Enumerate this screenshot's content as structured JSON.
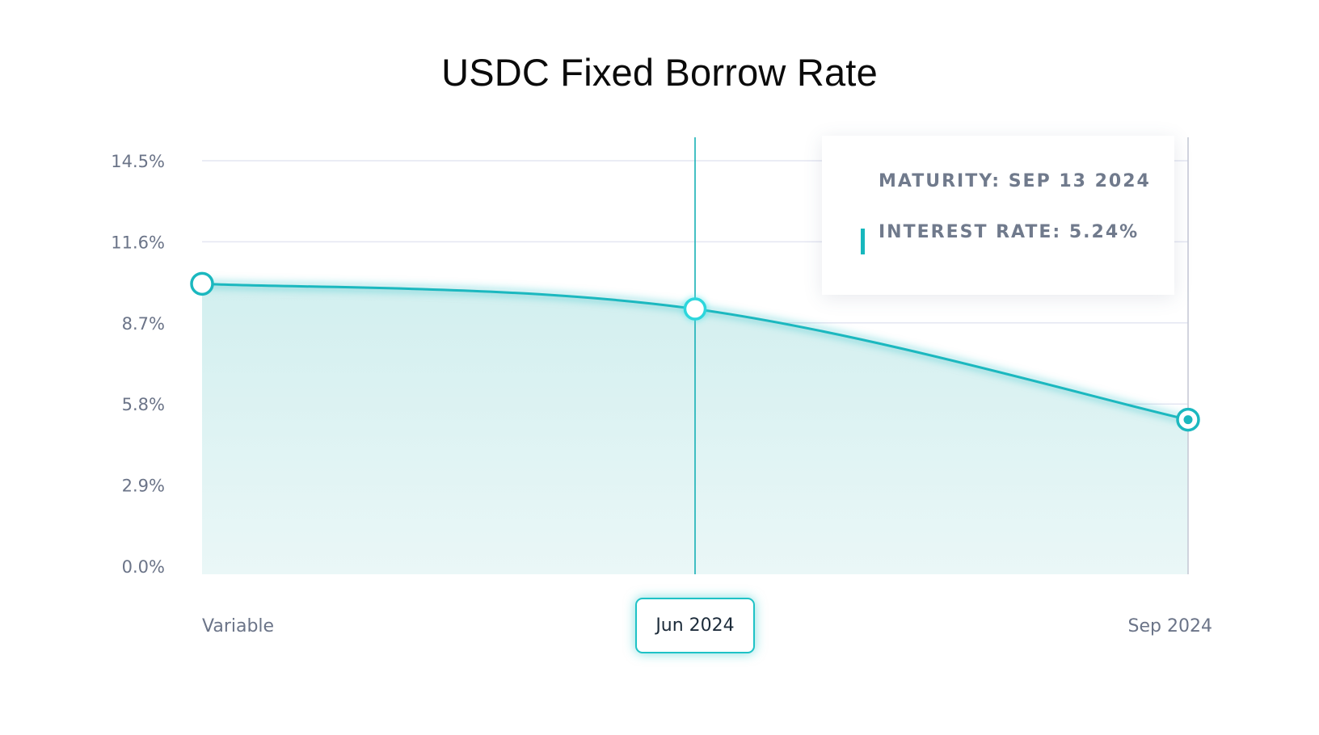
{
  "chart_data": {
    "type": "area",
    "title": "USDC Fixed Borrow Rate",
    "categories": [
      "Variable",
      "Jun 2024",
      "Sep 2024"
    ],
    "series": [
      {
        "values": [
          10.1,
          9.2,
          5.24
        ]
      }
    ],
    "ylim": [
      0,
      14.5
    ],
    "yticks": [
      "0.0%",
      "2.9%",
      "5.8%",
      "8.7%",
      "11.6%",
      "14.5%"
    ],
    "ytick_values": [
      0,
      2.9,
      5.8,
      8.7,
      11.6,
      14.5
    ],
    "grid": true,
    "selected_category": "Jun 2024",
    "colors": {
      "line": "#1bb8bf",
      "fill_top": "#d2efef",
      "fill_bottom": "#eaf7f7",
      "grid": "#e4e6f2",
      "tick_text": "#6b7488",
      "crosshair": "#17b0b6"
    }
  },
  "tooltip": {
    "maturity": "MATURITY: SEP 13 2024",
    "interest_rate": "INTEREST RATE: 5.24%"
  }
}
